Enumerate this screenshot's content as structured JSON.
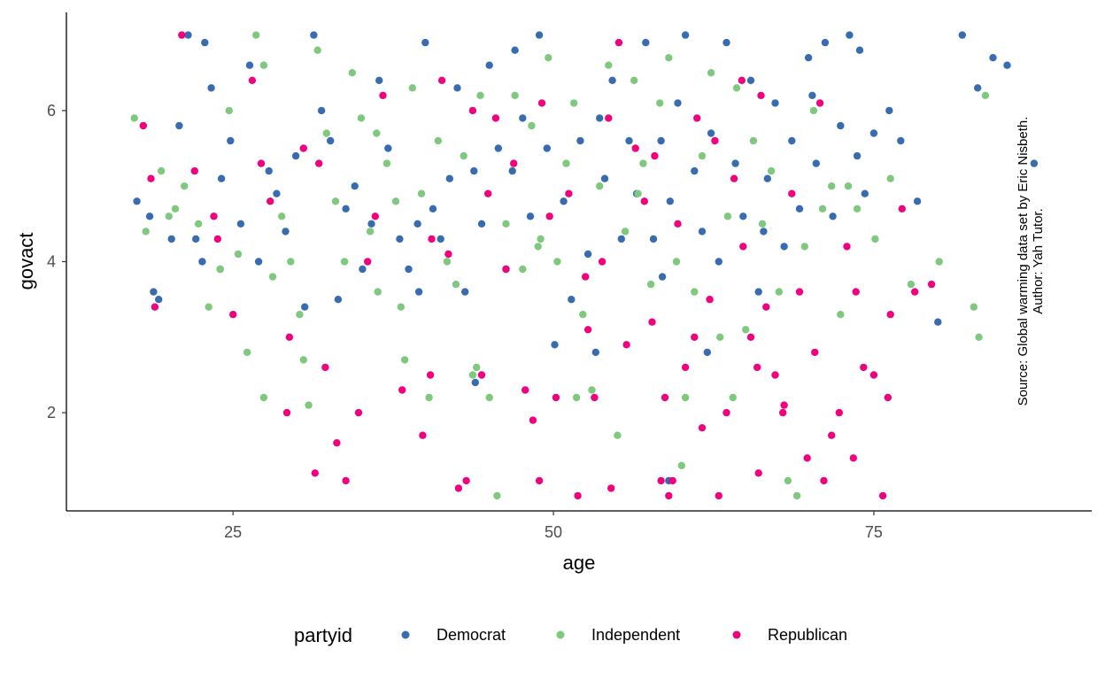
{
  "chart_data": {
    "type": "scatter",
    "xlabel": "age",
    "ylabel": "govact",
    "xlim": [
      12,
      92
    ],
    "ylim": [
      0.7,
      7.3
    ],
    "x_ticks": [
      25,
      50,
      75
    ],
    "y_ticks": [
      2,
      4,
      6
    ],
    "grid": false,
    "legend": {
      "title": "partyid",
      "position": "bottom"
    },
    "annotation": [
      "Source: Global warming data set by Eric Nisbeth.",
      "Author: Yah Tutor."
    ],
    "series": [
      {
        "name": "Democrat",
        "color": "#386CB0",
        "points": [
          [
            17.5,
            4.8
          ],
          [
            18.5,
            4.6
          ],
          [
            18.8,
            3.6
          ],
          [
            19.2,
            3.5
          ],
          [
            20.2,
            4.3
          ],
          [
            20.8,
            5.8
          ],
          [
            21.5,
            7.0
          ],
          [
            22.1,
            4.3
          ],
          [
            22.6,
            4.0
          ],
          [
            23.3,
            6.3
          ],
          [
            24.1,
            5.1
          ],
          [
            24.8,
            5.6
          ],
          [
            25.6,
            4.5
          ],
          [
            26.3,
            6.6
          ],
          [
            27.0,
            4.0
          ],
          [
            27.8,
            5.2
          ],
          [
            28.4,
            4.9
          ],
          [
            29.1,
            4.4
          ],
          [
            29.9,
            5.4
          ],
          [
            30.6,
            3.4
          ],
          [
            31.3,
            7.0
          ],
          [
            31.9,
            6.0
          ],
          [
            32.6,
            5.6
          ],
          [
            33.2,
            3.5
          ],
          [
            33.8,
            4.7
          ],
          [
            34.5,
            5.0
          ],
          [
            35.1,
            3.9
          ],
          [
            35.8,
            4.5
          ],
          [
            36.4,
            6.4
          ],
          [
            37.1,
            5.5
          ],
          [
            38.0,
            4.3
          ],
          [
            38.7,
            3.9
          ],
          [
            39.4,
            4.5
          ],
          [
            40.0,
            6.9
          ],
          [
            40.6,
            4.7
          ],
          [
            41.2,
            4.3
          ],
          [
            41.9,
            5.1
          ],
          [
            42.5,
            6.3
          ],
          [
            43.1,
            3.6
          ],
          [
            43.8,
            5.2
          ],
          [
            44.4,
            4.5
          ],
          [
            45.0,
            6.6
          ],
          [
            45.7,
            5.5
          ],
          [
            46.3,
            3.9
          ],
          [
            47.0,
            6.8
          ],
          [
            47.6,
            5.9
          ],
          [
            48.2,
            4.6
          ],
          [
            48.9,
            7.0
          ],
          [
            49.5,
            5.5
          ],
          [
            50.1,
            2.9
          ],
          [
            50.8,
            4.8
          ],
          [
            51.4,
            3.5
          ],
          [
            52.1,
            5.6
          ],
          [
            52.7,
            4.1
          ],
          [
            53.3,
            2.8
          ],
          [
            54.0,
            5.1
          ],
          [
            54.6,
            6.4
          ],
          [
            55.3,
            4.3
          ],
          [
            55.9,
            5.6
          ],
          [
            56.5,
            4.9
          ],
          [
            57.2,
            6.9
          ],
          [
            57.8,
            4.3
          ],
          [
            58.4,
            5.6
          ],
          [
            59.1,
            4.8
          ],
          [
            59.7,
            6.1
          ],
          [
            60.3,
            7.0
          ],
          [
            61.0,
            5.2
          ],
          [
            61.6,
            4.4
          ],
          [
            62.3,
            5.7
          ],
          [
            62.9,
            4.0
          ],
          [
            63.5,
            6.9
          ],
          [
            64.2,
            5.3
          ],
          [
            64.8,
            4.6
          ],
          [
            65.4,
            6.4
          ],
          [
            66.0,
            3.6
          ],
          [
            66.7,
            5.1
          ],
          [
            67.3,
            6.1
          ],
          [
            68.0,
            4.2
          ],
          [
            68.6,
            5.6
          ],
          [
            69.2,
            4.7
          ],
          [
            69.9,
            6.7
          ],
          [
            70.5,
            5.3
          ],
          [
            71.2,
            6.9
          ],
          [
            71.8,
            4.6
          ],
          [
            72.4,
            5.8
          ],
          [
            73.1,
            7.0
          ],
          [
            73.7,
            5.4
          ],
          [
            74.3,
            4.9
          ],
          [
            75.0,
            5.7
          ],
          [
            76.2,
            6.0
          ],
          [
            77.1,
            5.6
          ],
          [
            78.4,
            4.8
          ],
          [
            80.0,
            3.2
          ],
          [
            81.9,
            7.0
          ],
          [
            83.1,
            6.3
          ],
          [
            84.3,
            6.7
          ],
          [
            85.4,
            6.6
          ],
          [
            87.5,
            5.3
          ],
          [
            62.0,
            2.8
          ],
          [
            59.0,
            1.1
          ],
          [
            43.9,
            2.4
          ],
          [
            22.8,
            6.9
          ],
          [
            39.5,
            3.6
          ],
          [
            46.8,
            5.2
          ],
          [
            53.6,
            5.9
          ],
          [
            66.4,
            4.4
          ],
          [
            24.0,
            3.9
          ],
          [
            58.5,
            3.8
          ],
          [
            70.2,
            6.2
          ],
          [
            73.9,
            6.8
          ]
        ]
      },
      {
        "name": "Independent",
        "color": "#7FC97F",
        "points": [
          [
            17.3,
            5.9
          ],
          [
            18.2,
            4.4
          ],
          [
            19.4,
            5.2
          ],
          [
            20.5,
            4.7
          ],
          [
            21.2,
            5.0
          ],
          [
            22.3,
            4.5
          ],
          [
            23.1,
            3.4
          ],
          [
            24.0,
            3.9
          ],
          [
            24.7,
            6.0
          ],
          [
            25.4,
            4.1
          ],
          [
            26.1,
            2.8
          ],
          [
            26.8,
            7.0
          ],
          [
            27.4,
            6.6
          ],
          [
            28.1,
            3.8
          ],
          [
            28.8,
            4.6
          ],
          [
            29.5,
            4.0
          ],
          [
            30.2,
            3.3
          ],
          [
            30.9,
            2.1
          ],
          [
            31.6,
            6.8
          ],
          [
            32.3,
            5.7
          ],
          [
            33.0,
            4.8
          ],
          [
            33.7,
            4.0
          ],
          [
            34.3,
            6.5
          ],
          [
            35.0,
            5.9
          ],
          [
            35.7,
            4.4
          ],
          [
            36.3,
            3.6
          ],
          [
            37.0,
            5.3
          ],
          [
            37.7,
            4.8
          ],
          [
            38.4,
            2.7
          ],
          [
            39.0,
            6.3
          ],
          [
            39.7,
            4.9
          ],
          [
            40.3,
            2.2
          ],
          [
            41.0,
            5.6
          ],
          [
            41.7,
            4.0
          ],
          [
            42.4,
            3.7
          ],
          [
            43.0,
            5.4
          ],
          [
            43.7,
            2.5
          ],
          [
            44.3,
            6.2
          ],
          [
            45.0,
            2.2
          ],
          [
            45.6,
            0.9
          ],
          [
            46.3,
            4.5
          ],
          [
            47.0,
            6.2
          ],
          [
            47.6,
            3.9
          ],
          [
            48.3,
            5.8
          ],
          [
            49.0,
            4.3
          ],
          [
            49.6,
            6.7
          ],
          [
            50.3,
            4.0
          ],
          [
            51.0,
            5.3
          ],
          [
            51.6,
            6.1
          ],
          [
            52.3,
            3.3
          ],
          [
            53.0,
            2.3
          ],
          [
            53.6,
            5.0
          ],
          [
            54.3,
            6.6
          ],
          [
            55.0,
            1.7
          ],
          [
            55.6,
            4.4
          ],
          [
            56.3,
            6.4
          ],
          [
            57.0,
            5.3
          ],
          [
            57.6,
            3.7
          ],
          [
            58.3,
            6.1
          ],
          [
            59.0,
            6.7
          ],
          [
            59.6,
            4.0
          ],
          [
            60.3,
            2.2
          ],
          [
            61.0,
            3.6
          ],
          [
            61.6,
            5.4
          ],
          [
            62.3,
            6.5
          ],
          [
            63.0,
            3.0
          ],
          [
            63.6,
            4.6
          ],
          [
            64.3,
            6.3
          ],
          [
            65.0,
            3.1
          ],
          [
            65.6,
            5.6
          ],
          [
            66.3,
            4.5
          ],
          [
            67.0,
            5.2
          ],
          [
            67.6,
            3.6
          ],
          [
            68.3,
            1.1
          ],
          [
            69.0,
            0.9
          ],
          [
            69.6,
            4.2
          ],
          [
            70.3,
            6.0
          ],
          [
            71.0,
            4.7
          ],
          [
            71.7,
            5.0
          ],
          [
            72.4,
            3.3
          ],
          [
            73.0,
            5.0
          ],
          [
            73.7,
            4.7
          ],
          [
            75.1,
            4.3
          ],
          [
            76.3,
            5.1
          ],
          [
            77.9,
            3.7
          ],
          [
            80.1,
            4.0
          ],
          [
            82.8,
            3.4
          ],
          [
            83.2,
            3.0
          ],
          [
            83.7,
            6.2
          ],
          [
            64.0,
            2.2
          ],
          [
            60.0,
            1.3
          ],
          [
            51.8,
            2.2
          ],
          [
            30.5,
            2.7
          ],
          [
            27.4,
            2.2
          ],
          [
            44.0,
            2.6
          ],
          [
            48.8,
            4.2
          ],
          [
            56.6,
            4.9
          ],
          [
            38.1,
            3.4
          ],
          [
            36.2,
            5.7
          ],
          [
            20.0,
            4.6
          ]
        ]
      },
      {
        "name": "Republican",
        "color": "#F0027F",
        "points": [
          [
            18.0,
            5.8
          ],
          [
            18.6,
            5.1
          ],
          [
            18.9,
            3.4
          ],
          [
            21.0,
            7.0
          ],
          [
            22.0,
            5.2
          ],
          [
            23.5,
            4.6
          ],
          [
            25.0,
            3.3
          ],
          [
            26.5,
            6.4
          ],
          [
            27.2,
            5.3
          ],
          [
            29.2,
            2.0
          ],
          [
            29.4,
            3.0
          ],
          [
            30.5,
            5.5
          ],
          [
            31.4,
            1.2
          ],
          [
            32.2,
            2.6
          ],
          [
            33.1,
            1.6
          ],
          [
            33.8,
            1.1
          ],
          [
            34.8,
            2.0
          ],
          [
            35.5,
            4.0
          ],
          [
            36.7,
            6.2
          ],
          [
            38.2,
            2.3
          ],
          [
            39.8,
            1.7
          ],
          [
            40.4,
            2.5
          ],
          [
            41.3,
            6.4
          ],
          [
            41.8,
            4.1
          ],
          [
            42.6,
            1.0
          ],
          [
            43.2,
            1.1
          ],
          [
            43.7,
            6.0
          ],
          [
            44.4,
            2.5
          ],
          [
            45.5,
            5.9
          ],
          [
            46.3,
            3.9
          ],
          [
            46.9,
            5.3
          ],
          [
            47.8,
            2.3
          ],
          [
            48.4,
            1.9
          ],
          [
            48.9,
            1.1
          ],
          [
            49.7,
            4.6
          ],
          [
            50.2,
            2.2
          ],
          [
            51.2,
            4.9
          ],
          [
            51.9,
            0.9
          ],
          [
            52.5,
            3.8
          ],
          [
            53.2,
            2.2
          ],
          [
            53.8,
            4.0
          ],
          [
            54.5,
            1.0
          ],
          [
            55.1,
            6.9
          ],
          [
            55.7,
            2.9
          ],
          [
            56.4,
            5.5
          ],
          [
            57.1,
            4.8
          ],
          [
            57.7,
            3.2
          ],
          [
            58.4,
            1.1
          ],
          [
            59.0,
            0.9
          ],
          [
            59.7,
            4.5
          ],
          [
            60.3,
            2.6
          ],
          [
            61.0,
            3.0
          ],
          [
            61.6,
            1.8
          ],
          [
            62.2,
            3.5
          ],
          [
            62.9,
            0.9
          ],
          [
            63.5,
            2.0
          ],
          [
            64.1,
            5.1
          ],
          [
            64.8,
            4.2
          ],
          [
            65.4,
            3.0
          ],
          [
            66.0,
            1.2
          ],
          [
            66.6,
            3.4
          ],
          [
            67.3,
            2.5
          ],
          [
            67.9,
            2.0
          ],
          [
            68.6,
            4.9
          ],
          [
            69.2,
            3.6
          ],
          [
            69.8,
            1.4
          ],
          [
            70.4,
            2.8
          ],
          [
            71.1,
            1.1
          ],
          [
            71.7,
            1.7
          ],
          [
            72.3,
            2.0
          ],
          [
            72.9,
            4.2
          ],
          [
            73.6,
            3.6
          ],
          [
            74.2,
            2.6
          ],
          [
            75.0,
            2.5
          ],
          [
            75.7,
            0.9
          ],
          [
            76.3,
            3.3
          ],
          [
            77.2,
            4.7
          ],
          [
            78.2,
            3.6
          ],
          [
            79.5,
            3.7
          ],
          [
            64.7,
            6.4
          ],
          [
            61.2,
            5.9
          ],
          [
            57.9,
            5.4
          ],
          [
            54.3,
            5.9
          ],
          [
            49.1,
            6.1
          ],
          [
            44.9,
            4.9
          ],
          [
            40.5,
            4.3
          ],
          [
            36.1,
            4.6
          ],
          [
            31.7,
            5.3
          ],
          [
            27.9,
            4.8
          ],
          [
            23.8,
            4.3
          ],
          [
            70.8,
            6.1
          ],
          [
            66.2,
            6.2
          ],
          [
            62.6,
            5.6
          ],
          [
            59.3,
            1.1
          ],
          [
            68.0,
            2.1
          ],
          [
            73.4,
            1.4
          ],
          [
            76.1,
            2.2
          ],
          [
            65.9,
            2.6
          ],
          [
            58.7,
            2.2
          ],
          [
            52.7,
            3.1
          ]
        ]
      }
    ]
  }
}
